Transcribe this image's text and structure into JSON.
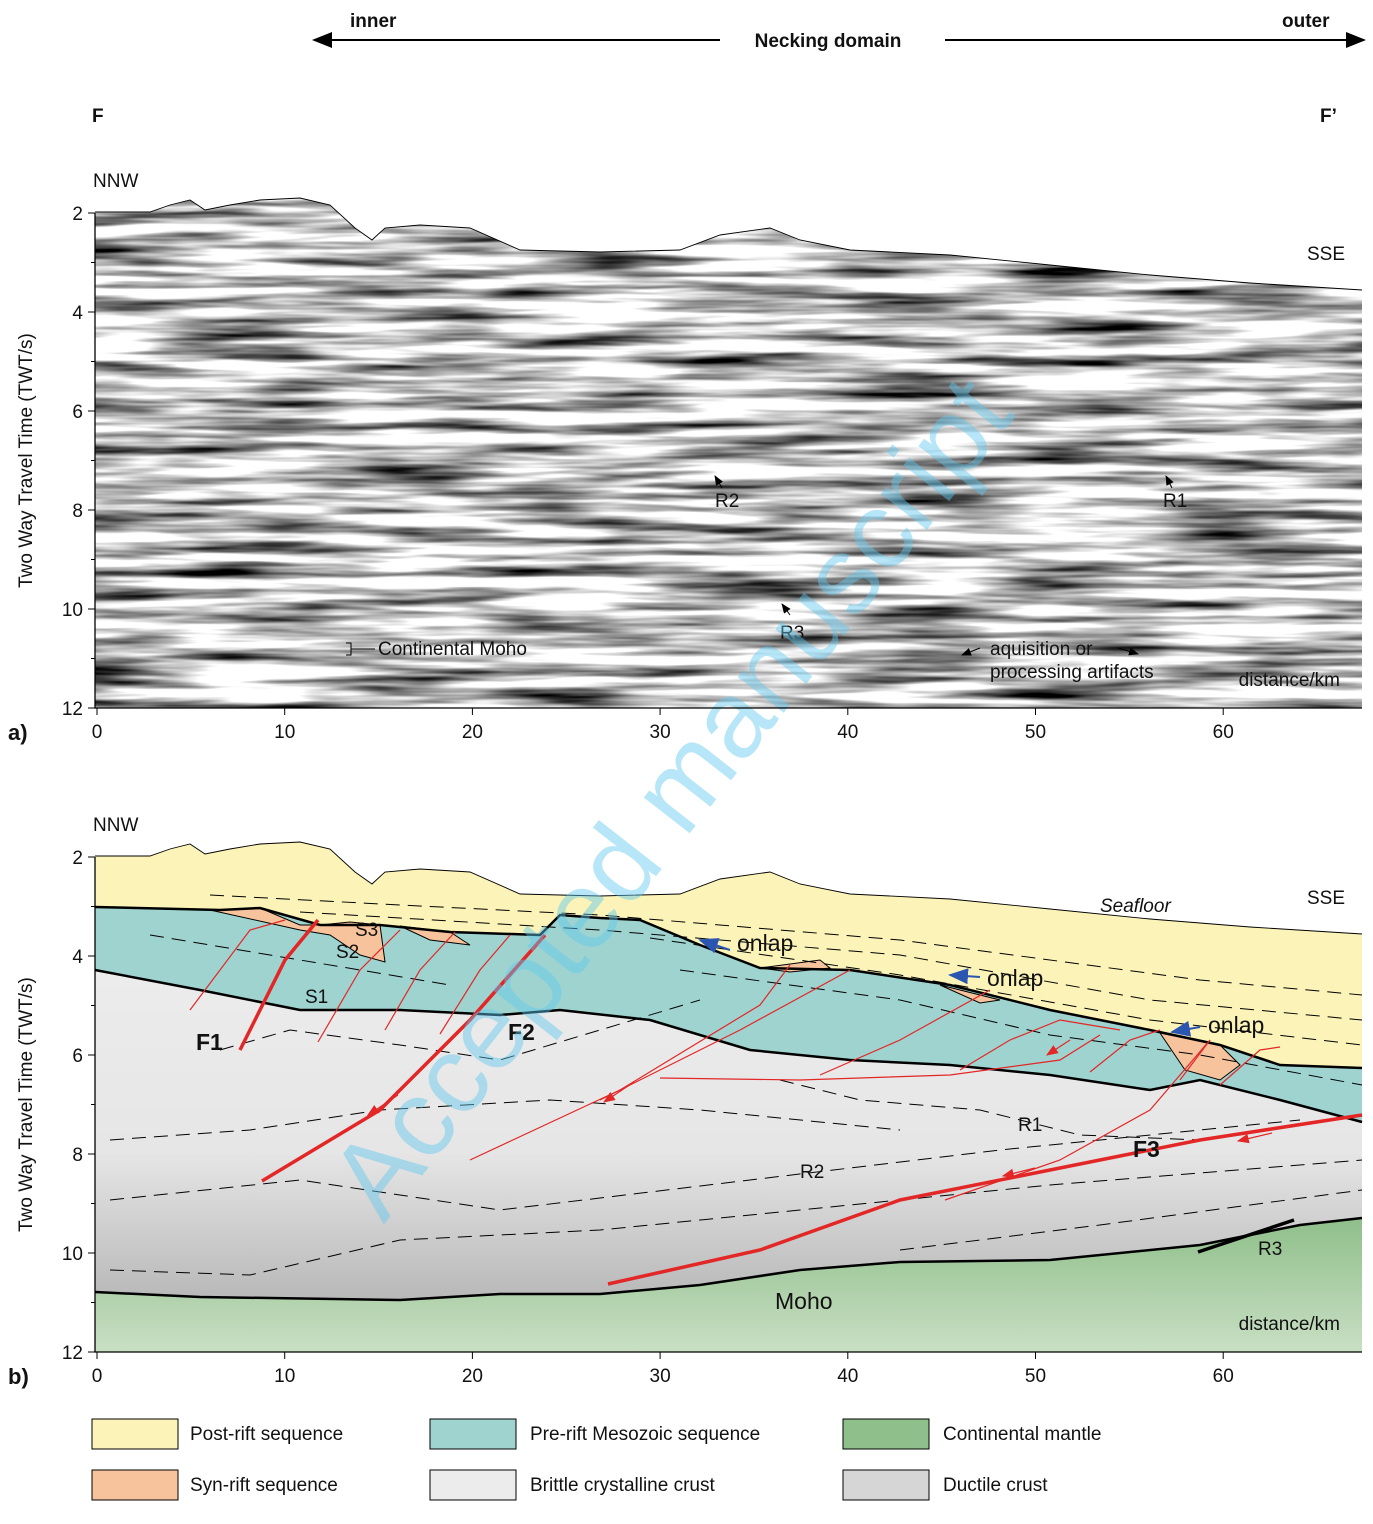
{
  "header": {
    "inner": "inner",
    "domain": "Necking domain",
    "outer": "outer",
    "left": "F",
    "right": "F’"
  },
  "panels": [
    {
      "label": "a)",
      "ylabel": "Two Way Travel Time (TWT/s)",
      "xlabel": "distance/km",
      "left_dir": "NNW",
      "right_dir": "SSE",
      "yticks": [
        2,
        4,
        6,
        8,
        10,
        12
      ],
      "xticks": [
        0,
        10,
        20,
        30,
        40,
        50,
        60
      ],
      "annotations": [
        "R2",
        "R1",
        "R3",
        "Continental Moho",
        "aquisition or",
        "processing artifacts"
      ]
    },
    {
      "label": "b)",
      "ylabel": "Two Way Travel Time (TWT/s)",
      "xlabel": "distance/km",
      "left_dir": "NNW",
      "right_dir": "SSE",
      "yticks": [
        2,
        4,
        6,
        8,
        10,
        12
      ],
      "xticks": [
        0,
        10,
        20,
        30,
        40,
        50,
        60
      ],
      "annotations": [
        "Seafloor",
        "S3",
        "S2",
        "S1",
        "F1",
        "F2",
        "onlap",
        "onlap",
        "onlap",
        "R1",
        "R2",
        "F3",
        "R3",
        "Moho"
      ]
    }
  ],
  "legend": [
    "Post-rift sequence",
    "Pre-rift Mesozoic sequence",
    "Continental mantle",
    "Syn-rift sequence",
    "Brittle crystalline crust",
    "Ductile crust"
  ],
  "watermark": "Accepted manuscript"
}
